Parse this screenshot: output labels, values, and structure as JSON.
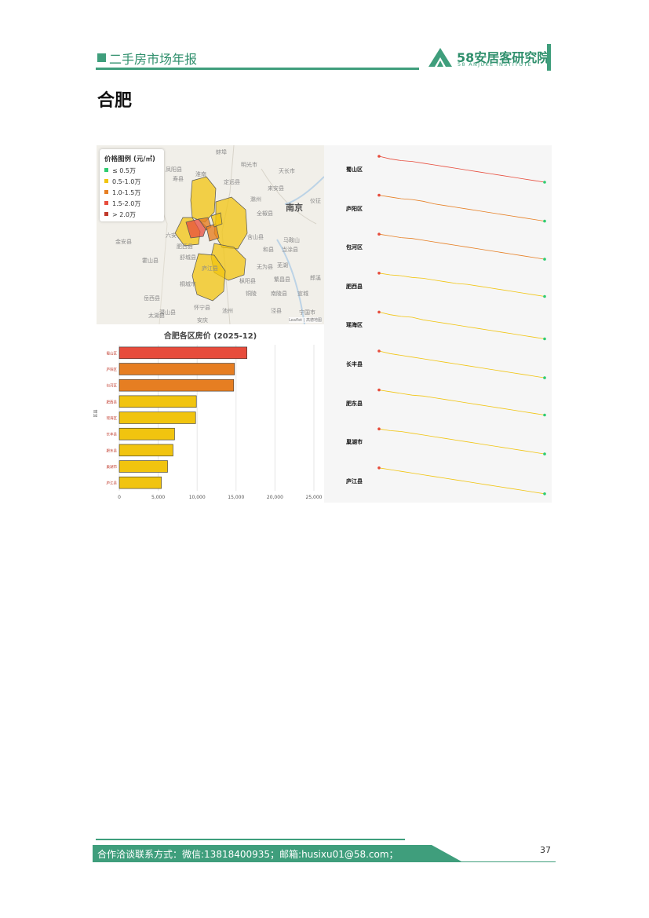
{
  "header": {
    "report_title": "二手房市场年报",
    "brand_name": "58安居客研究院",
    "brand_sub": "58 ANJUKE INSTITUTE",
    "accent_color": "#3f9e7c"
  },
  "city_title": "合肥",
  "map": {
    "legend_title": "价格图例 (元/㎡)",
    "legend_items": [
      {
        "label": "≤ 0.5万",
        "color": "#2ecc71"
      },
      {
        "label": "0.5-1.0万",
        "color": "#f1c40f"
      },
      {
        "label": "1.0-1.5万",
        "color": "#e67e22"
      },
      {
        "label": "1.5-2.0万",
        "color": "#e74c3c"
      },
      {
        "label": "> 2.0万",
        "color": "#c0392b"
      }
    ],
    "place_labels": [
      "蚌埠",
      "明光市",
      "天长市",
      "凤阳县",
      "淮南",
      "定远县",
      "来安县",
      "寿县",
      "滁州",
      "南京",
      "仪征",
      "全椒县",
      "六安",
      "马鞍山",
      "金安县",
      "舒城县",
      "含山县",
      "当涂县",
      "霍山县",
      "无为县",
      "芜湖",
      "繁昌县",
      "铜陵",
      "南陵县",
      "宣城",
      "郎溪",
      "枞阳县",
      "池州",
      "泾县",
      "宁国市",
      "岳西县",
      "怀宁县",
      "潜山县",
      "安庆",
      "太湖县",
      "桐城市",
      "和县",
      "肥西县",
      "庐江县"
    ],
    "attribution": "Leaflet | 高德地图"
  },
  "bar_chart": {
    "title": "合肥各区房价 (2025-12)",
    "ylabel": "区县"
  },
  "chart_data": [
    {
      "type": "bar",
      "orientation": "horizontal",
      "title": "合肥各区房价 (2025-12)",
      "categories": [
        "蜀山区",
        "庐阳区",
        "包河区",
        "肥西县",
        "瑶海区",
        "长丰县",
        "肥东县",
        "巢湖市",
        "庐江县"
      ],
      "values": [
        16400,
        14800,
        14700,
        9900,
        9800,
        7100,
        6900,
        6200,
        5400
      ],
      "colors": [
        "#e74c3c",
        "#e67e22",
        "#e67e22",
        "#f1c40f",
        "#f1c40f",
        "#f1c40f",
        "#f1c40f",
        "#f1c40f",
        "#f1c40f"
      ],
      "xlim": [
        0,
        25000
      ],
      "xticks": [
        "0",
        "5,000",
        "10,000",
        "15,000",
        "20,000",
        "25,000"
      ],
      "grid": true
    },
    {
      "type": "line",
      "style": "sparklines",
      "series": [
        {
          "name": "蜀山区",
          "color": "#e74c3c",
          "values": [
            1.0,
            0.97,
            0.95,
            0.94,
            0.92,
            0.9,
            0.88,
            0.86,
            0.84,
            0.82,
            0.8,
            0.78,
            0.76,
            0.74,
            0.72,
            0.7
          ]
        },
        {
          "name": "庐阳区",
          "color": "#e67e22",
          "values": [
            1.0,
            0.98,
            0.96,
            0.95,
            0.93,
            0.9,
            0.88,
            0.86,
            0.84,
            0.82,
            0.8,
            0.78,
            0.76,
            0.74,
            0.72,
            0.7
          ]
        },
        {
          "name": "包河区",
          "color": "#e67e22",
          "values": [
            1.0,
            0.98,
            0.96,
            0.95,
            0.93,
            0.91,
            0.89,
            0.87,
            0.85,
            0.83,
            0.81,
            0.79,
            0.77,
            0.75,
            0.73,
            0.71
          ]
        },
        {
          "name": "肥西县",
          "color": "#f1c40f",
          "values": [
            1.0,
            0.98,
            0.97,
            0.95,
            0.94,
            0.92,
            0.9,
            0.88,
            0.87,
            0.85,
            0.83,
            0.81,
            0.79,
            0.77,
            0.75,
            0.73
          ]
        },
        {
          "name": "瑶海区",
          "color": "#f1c40f",
          "values": [
            1.0,
            0.97,
            0.95,
            0.94,
            0.91,
            0.89,
            0.87,
            0.85,
            0.83,
            0.81,
            0.79,
            0.77,
            0.75,
            0.73,
            0.71,
            0.69
          ]
        },
        {
          "name": "长丰县",
          "color": "#f1c40f",
          "values": [
            1.0,
            0.97,
            0.95,
            0.93,
            0.91,
            0.89,
            0.87,
            0.85,
            0.83,
            0.81,
            0.79,
            0.77,
            0.75,
            0.73,
            0.71,
            0.69
          ]
        },
        {
          "name": "肥东县",
          "color": "#f1c40f",
          "values": [
            1.0,
            0.98,
            0.96,
            0.94,
            0.93,
            0.91,
            0.89,
            0.87,
            0.85,
            0.83,
            0.81,
            0.79,
            0.77,
            0.75,
            0.73,
            0.71
          ]
        },
        {
          "name": "巢湖市",
          "color": "#f1c40f",
          "values": [
            1.0,
            0.98,
            0.97,
            0.95,
            0.93,
            0.91,
            0.89,
            0.87,
            0.85,
            0.83,
            0.81,
            0.79,
            0.77,
            0.75,
            0.73,
            0.71
          ]
        },
        {
          "name": "庐江县",
          "color": "#f1c40f",
          "values": [
            1.0,
            0.98,
            0.96,
            0.94,
            0.92,
            0.9,
            0.88,
            0.86,
            0.84,
            0.82,
            0.8,
            0.78,
            0.76,
            0.74,
            0.72,
            0.7
          ]
        }
      ],
      "start_marker_color": "#e74c3c",
      "end_marker_color": "#2ecc71"
    }
  ],
  "footer": {
    "contact": "合作洽谈联系方式：微信:13818400935；邮箱:husixu01@58.com；",
    "page_number": "37"
  }
}
